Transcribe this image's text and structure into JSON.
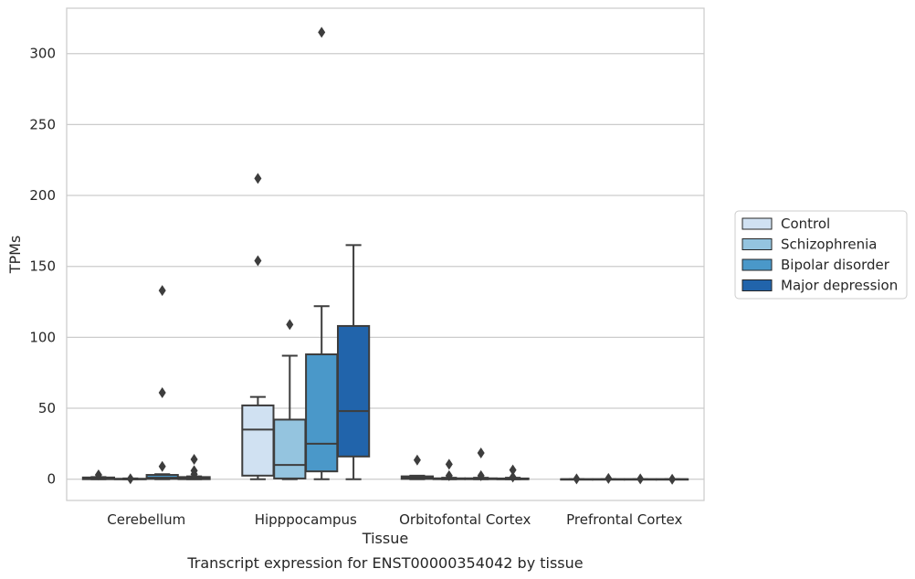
{
  "chart_data": {
    "type": "box",
    "xlabel": "Tissue",
    "ylabel": "TPMs",
    "caption": "Transcript expression for ENST00000354042 by tissue",
    "ylim": [
      -15,
      332
    ],
    "yticks": [
      0,
      50,
      100,
      150,
      200,
      250,
      300
    ],
    "grid": true,
    "legend_position": "right",
    "categories": [
      "Cerebellum",
      "Hipppocampus",
      "Orbitofontal Cortex",
      "Prefrontal Cortex"
    ],
    "series": [
      {
        "name": "Control",
        "color": "#d0e1f2",
        "boxes": [
          {
            "whislo": 0,
            "q1": 0,
            "med": 0.5,
            "q3": 1.2,
            "whishi": 1.5,
            "fliers": [
              3
            ]
          },
          {
            "whislo": 0,
            "q1": 2.5,
            "med": 35,
            "q3": 52,
            "whishi": 58,
            "fliers": [
              154,
              212
            ]
          },
          {
            "whislo": 0,
            "q1": 0.2,
            "med": 1,
            "q3": 2,
            "whishi": 2.5,
            "fliers": [
              13.5
            ]
          },
          {
            "whislo": 0,
            "q1": 0,
            "med": 0,
            "q3": 0,
            "whishi": 0,
            "fliers": [
              0.2
            ]
          }
        ]
      },
      {
        "name": "Schizophrenia",
        "color": "#94c4df",
        "boxes": [
          {
            "whislo": 0,
            "q1": 0,
            "med": 0,
            "q3": 0.3,
            "whishi": 0.5,
            "fliers": [
              0.3
            ]
          },
          {
            "whislo": 0,
            "q1": 0.5,
            "med": 10,
            "q3": 42,
            "whishi": 87,
            "fliers": [
              109
            ]
          },
          {
            "whislo": 0,
            "q1": 0,
            "med": 0.2,
            "q3": 0.6,
            "whishi": 1,
            "fliers": [
              2.5,
              10.5
            ]
          },
          {
            "whislo": 0,
            "q1": 0,
            "med": 0,
            "q3": 0,
            "whishi": 0,
            "fliers": [
              0.5
            ]
          }
        ]
      },
      {
        "name": "Bipolar disorder",
        "color": "#4a98c9",
        "boxes": [
          {
            "whislo": 0,
            "q1": 0.2,
            "med": 1,
            "q3": 3,
            "whishi": 3.5,
            "fliers": [
              9,
              61,
              133
            ]
          },
          {
            "whislo": 0,
            "q1": 5.5,
            "med": 25,
            "q3": 88,
            "whishi": 122,
            "fliers": [
              315
            ]
          },
          {
            "whislo": 0,
            "q1": 0,
            "med": 0.2,
            "q3": 0.6,
            "whishi": 1,
            "fliers": [
              2.5,
              18.5
            ]
          },
          {
            "whislo": 0,
            "q1": 0,
            "med": 0,
            "q3": 0,
            "whishi": 0,
            "fliers": [
              0.2
            ]
          }
        ]
      },
      {
        "name": "Major depression",
        "color": "#2164ab",
        "boxes": [
          {
            "whislo": 0,
            "q1": 0,
            "med": 0.5,
            "q3": 1.5,
            "whishi": 2,
            "fliers": [
              3.5,
              6,
              14
            ]
          },
          {
            "whislo": 0,
            "q1": 16,
            "med": 48,
            "q3": 108,
            "whishi": 165,
            "fliers": []
          },
          {
            "whislo": 0,
            "q1": 0,
            "med": 0,
            "q3": 0.5,
            "whishi": 1,
            "fliers": [
              1.5,
              6.5
            ]
          },
          {
            "whislo": 0,
            "q1": 0,
            "med": 0,
            "q3": 0,
            "whishi": 0,
            "fliers": [
              0
            ]
          }
        ]
      }
    ]
  }
}
